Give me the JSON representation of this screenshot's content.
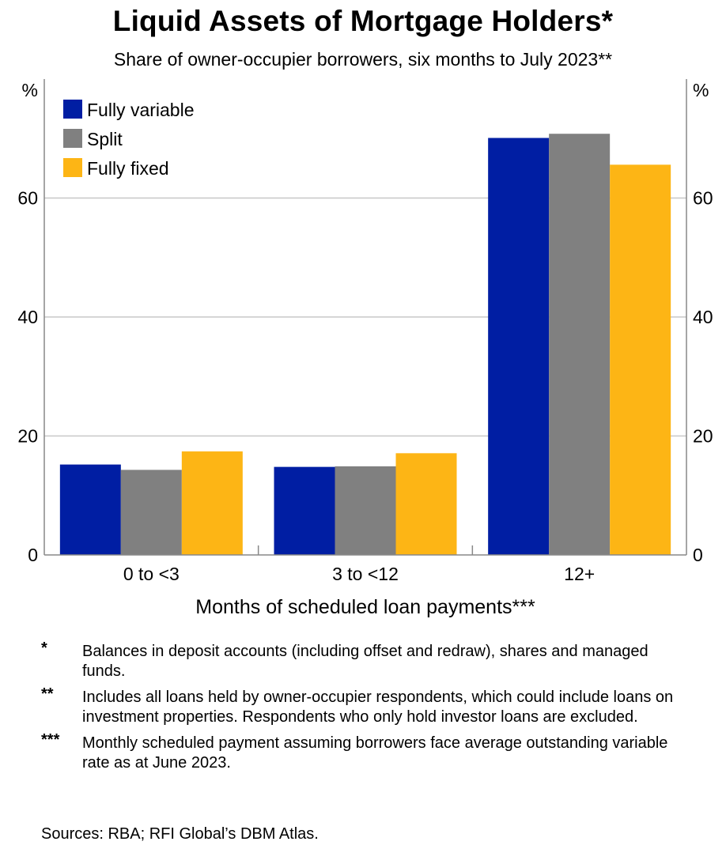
{
  "chart_data": {
    "type": "bar",
    "title": "Liquid Assets of Mortgage Holders*",
    "subtitle": "Share of owner-occupier borrowers, six months to July 2023**",
    "xlabel": "Months of scheduled loan payments***",
    "ylabel_left": "%",
    "ylabel_right": "%",
    "categories": [
      "0 to <3",
      "3 to <12",
      "12+"
    ],
    "series": [
      {
        "name": "Fully variable",
        "color": "#001ea3",
        "values": [
          15.2,
          14.8,
          70.1
        ]
      },
      {
        "name": "Split",
        "color": "#808080",
        "values": [
          14.3,
          14.9,
          70.8
        ]
      },
      {
        "name": "Fully fixed",
        "color": "#fdb515",
        "values": [
          17.4,
          17.1,
          65.6
        ]
      }
    ],
    "ylim": [
      0,
      80
    ],
    "yticks": [
      0,
      20,
      40,
      60
    ],
    "grid": true,
    "legend_position": "top-left"
  },
  "notes": [
    {
      "mark": "*",
      "text": "Balances in deposit accounts (including offset and redraw), shares and managed funds."
    },
    {
      "mark": "**",
      "text": "Includes all loans held by owner-occupier respondents, which could include loans on investment properties. Respondents who only hold investor loans are excluded."
    },
    {
      "mark": "***",
      "text": "Monthly scheduled payment assuming borrowers face average outstanding variable rate as at June 2023."
    }
  ],
  "sources": "Sources: RBA; RFI Global’s DBM Atlas."
}
